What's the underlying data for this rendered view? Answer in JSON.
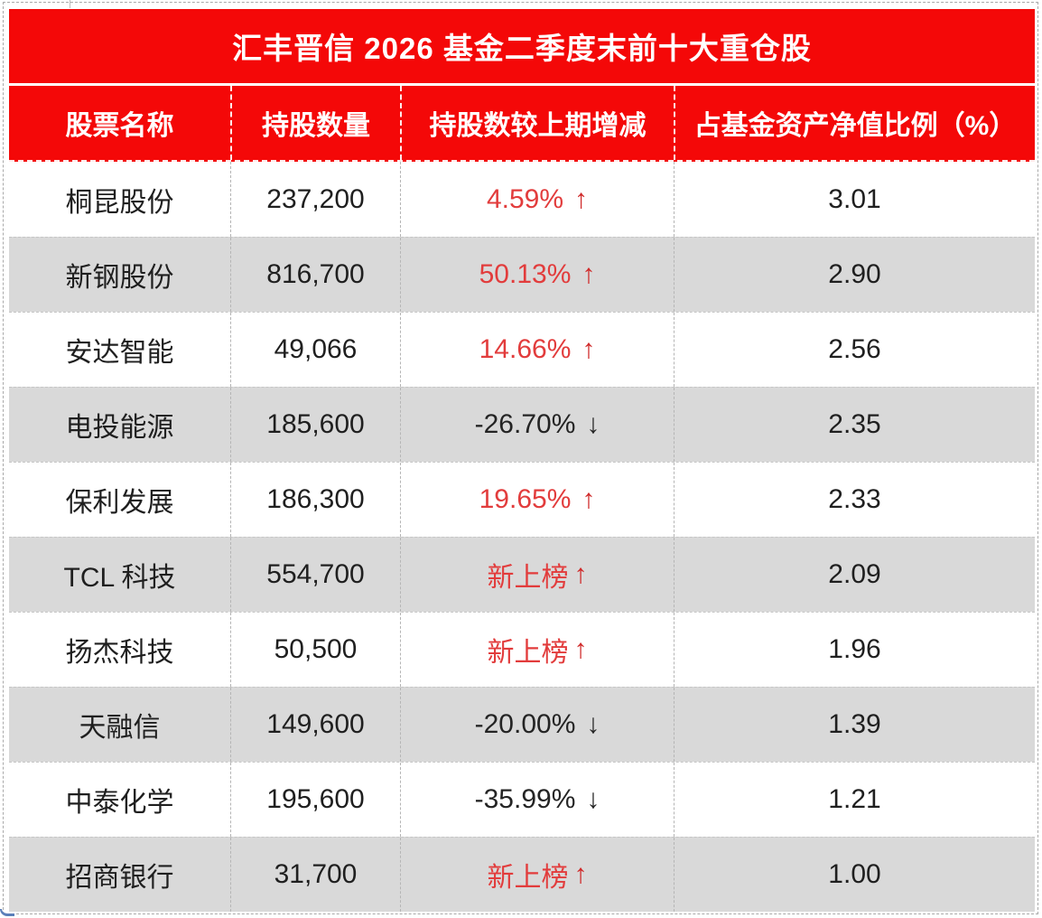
{
  "colors": {
    "header_red": "#f40808",
    "row_gray": "#d9d9d9",
    "row_white": "#ffffff",
    "up_text_red": "#e23c3c",
    "up_arrow_red": "#d02a2a",
    "down_text_dark": "#242424",
    "header_text": "#ffffff"
  },
  "chart_data": {
    "type": "table",
    "title": "汇丰晋信 2026 基金二季度末前十大重仓股",
    "columns": [
      "股票名称",
      "持股数量",
      "持股数较上期增减",
      "占基金资产净值比例（%）"
    ],
    "rows": [
      {
        "name": "桐昆股份",
        "shares": "237,200",
        "change": "4.59%",
        "arrow": "↑",
        "trend": "up",
        "ratio": "3.01"
      },
      {
        "name": "新钢股份",
        "shares": "816,700",
        "change": "50.13%",
        "arrow": "↑",
        "trend": "up",
        "ratio": "2.90"
      },
      {
        "name": "安达智能",
        "shares": "49,066",
        "change": "14.66%",
        "arrow": "↑",
        "trend": "up",
        "ratio": "2.56"
      },
      {
        "name": "电投能源",
        "shares": "185,600",
        "change": "-26.70%",
        "arrow": "↓",
        "trend": "down",
        "ratio": "2.35"
      },
      {
        "name": "保利发展",
        "shares": "186,300",
        "change": "19.65%",
        "arrow": "↑",
        "trend": "up",
        "ratio": "2.33"
      },
      {
        "name": "TCL 科技",
        "shares": "554,700",
        "change": "新上榜",
        "arrow": "↑",
        "trend": "new",
        "ratio": "2.09"
      },
      {
        "name": "扬杰科技",
        "shares": "50,500",
        "change": "新上榜",
        "arrow": "↑",
        "trend": "new",
        "ratio": "1.96"
      },
      {
        "name": "天融信",
        "shares": "149,600",
        "change": "-20.00%",
        "arrow": "↓",
        "trend": "down",
        "ratio": "1.39"
      },
      {
        "name": "中泰化学",
        "shares": "195,600",
        "change": "-35.99%",
        "arrow": "↓",
        "trend": "down",
        "ratio": "1.21"
      },
      {
        "name": "招商银行",
        "shares": "31,700",
        "change": "新上榜",
        "arrow": "↑",
        "trend": "new",
        "ratio": "1.00"
      }
    ]
  }
}
